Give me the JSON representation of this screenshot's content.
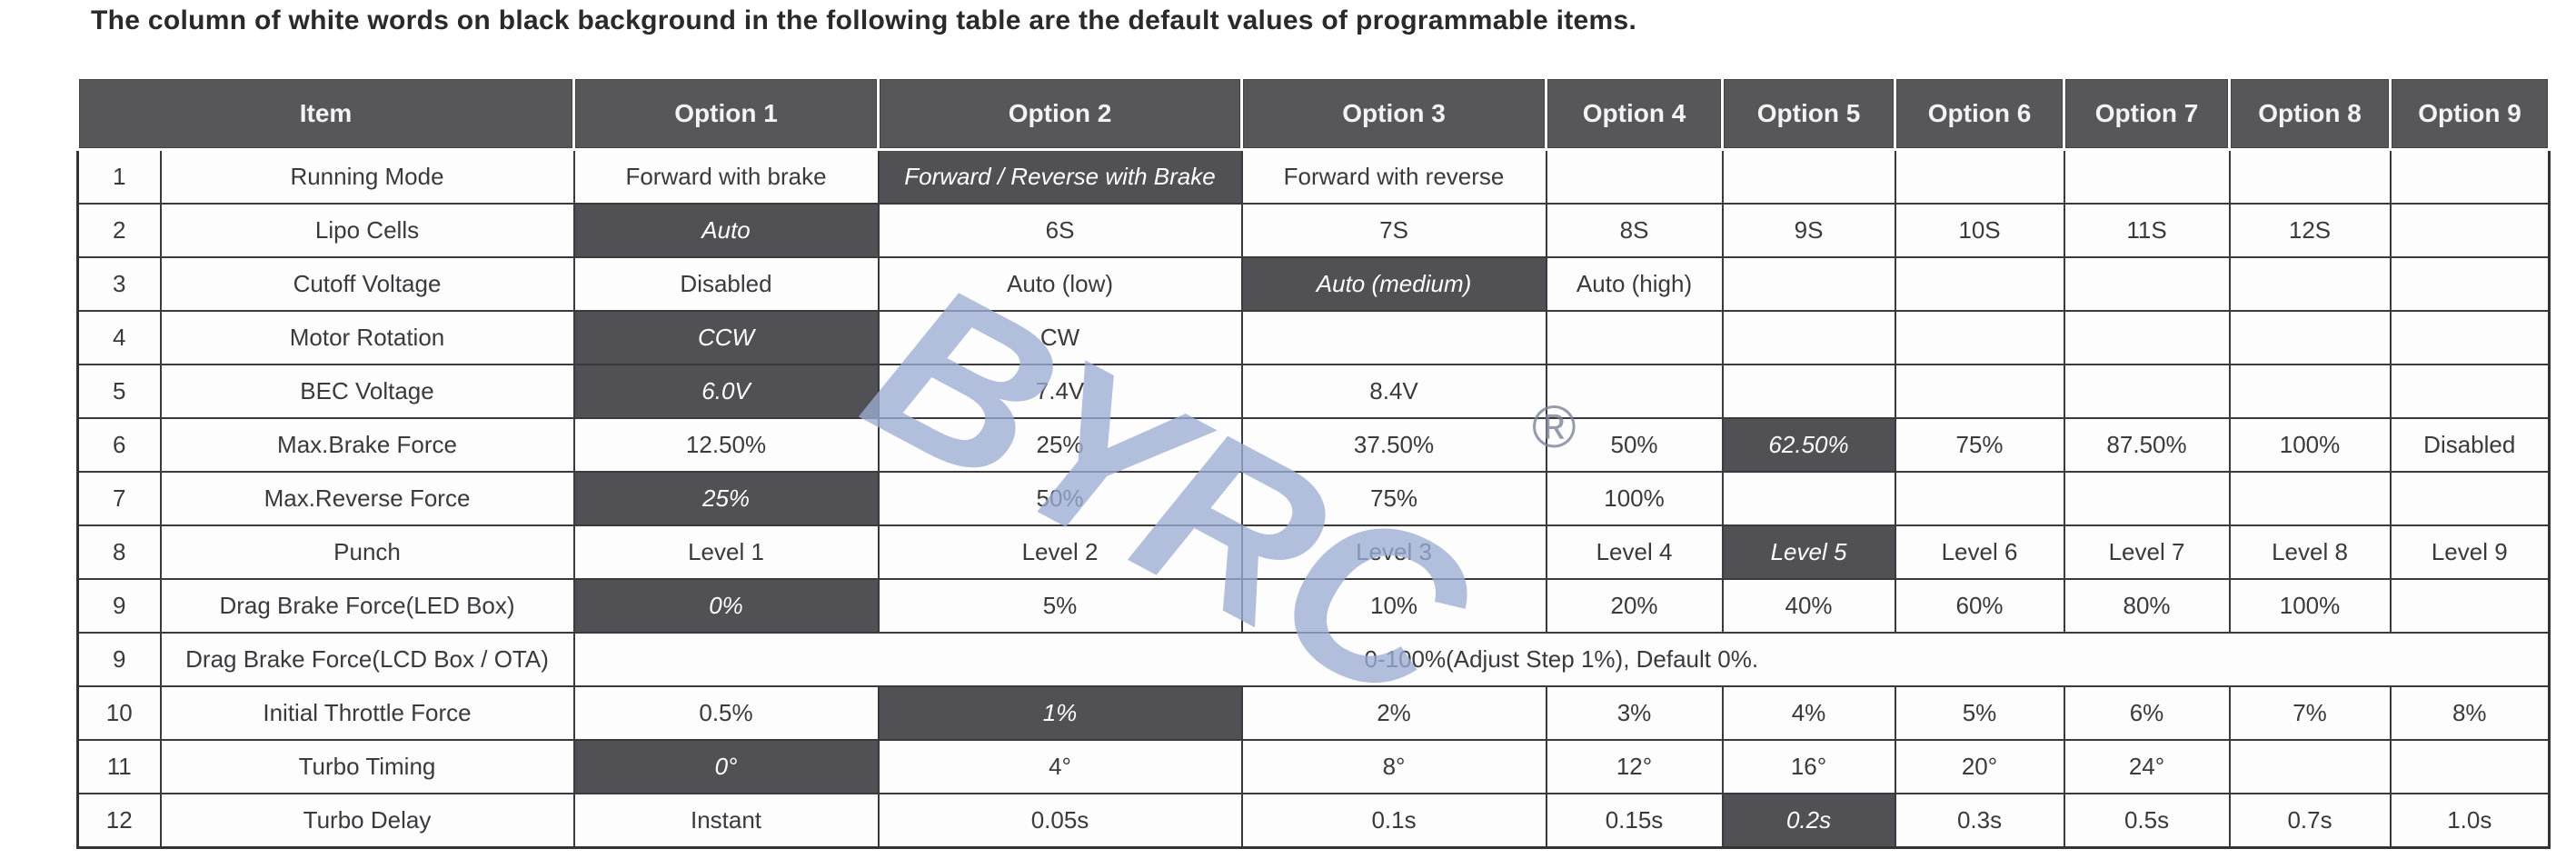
{
  "title": "The column of white words on black background in the following table are the default values of programmable items.",
  "watermark": {
    "text": "BYRC",
    "registered": "®",
    "color": "#9badd4"
  },
  "colors": {
    "header_bg": "#57575a",
    "default_cell_bg": "#515155",
    "default_cell_text": "#ffffff",
    "body_text": "#3a3a3d",
    "grid_border": "#3a3a3d"
  },
  "table": {
    "headers": [
      "Item",
      "Option 1",
      "Option 2",
      "Option 3",
      "Option 4",
      "Option 5",
      "Option 6",
      "Option 7",
      "Option 8",
      "Option 9"
    ],
    "rows": [
      {
        "num": "1",
        "item": "Running Mode",
        "default_index": 1,
        "options": [
          "Forward with brake",
          "Forward / Reverse with Brake",
          "Forward with reverse",
          "",
          "",
          "",
          "",
          "",
          ""
        ]
      },
      {
        "num": "2",
        "item": "Lipo Cells",
        "default_index": 0,
        "options": [
          "Auto",
          "6S",
          "7S",
          "8S",
          "9S",
          "10S",
          "11S",
          "12S",
          ""
        ]
      },
      {
        "num": "3",
        "item": "Cutoff Voltage",
        "default_index": 2,
        "options": [
          "Disabled",
          "Auto (low)",
          "Auto (medium)",
          "Auto (high)",
          "",
          "",
          "",
          "",
          ""
        ]
      },
      {
        "num": "4",
        "item": "Motor Rotation",
        "default_index": 0,
        "options": [
          "CCW",
          "CW",
          "",
          "",
          "",
          "",
          "",
          "",
          ""
        ]
      },
      {
        "num": "5",
        "item": "BEC Voltage",
        "default_index": 0,
        "options": [
          "6.0V",
          "7.4V",
          "8.4V",
          "",
          "",
          "",
          "",
          "",
          ""
        ]
      },
      {
        "num": "6",
        "item": "Max.Brake Force",
        "default_index": 4,
        "options": [
          "12.50%",
          "25%",
          "37.50%",
          "50%",
          "62.50%",
          "75%",
          "87.50%",
          "100%",
          "Disabled"
        ]
      },
      {
        "num": "7",
        "item": "Max.Reverse Force",
        "default_index": 0,
        "options": [
          "25%",
          "50%",
          "75%",
          "100%",
          "",
          "",
          "",
          "",
          ""
        ]
      },
      {
        "num": "8",
        "item": "Punch",
        "default_index": 4,
        "options": [
          "Level 1",
          "Level 2",
          "Level 3",
          "Level 4",
          "Level 5",
          "Level 6",
          "Level 7",
          "Level 8",
          "Level 9"
        ]
      },
      {
        "num": "9",
        "item": "Drag Brake Force(LED Box)",
        "default_index": 0,
        "options": [
          "0%",
          "5%",
          "10%",
          "20%",
          "40%",
          "60%",
          "80%",
          "100%",
          ""
        ]
      },
      {
        "num": "9",
        "item": "Drag Brake Force(LCD Box / OTA)",
        "merged": "0-100%(Adjust Step 1%), Default 0%."
      },
      {
        "num": "10",
        "item": "Initial Throttle Force",
        "default_index": 1,
        "options": [
          "0.5%",
          "1%",
          "2%",
          "3%",
          "4%",
          "5%",
          "6%",
          "7%",
          "8%"
        ]
      },
      {
        "num": "11",
        "item": "Turbo Timing",
        "default_index": 0,
        "options": [
          "0°",
          "4°",
          "8°",
          "12°",
          "16°",
          "20°",
          "24°",
          "",
          ""
        ]
      },
      {
        "num": "12",
        "item": "Turbo Delay",
        "default_index": 4,
        "options": [
          "Instant",
          "0.05s",
          "0.1s",
          "0.15s",
          "0.2s",
          "0.3s",
          "0.5s",
          "0.7s",
          "1.0s"
        ]
      }
    ]
  }
}
